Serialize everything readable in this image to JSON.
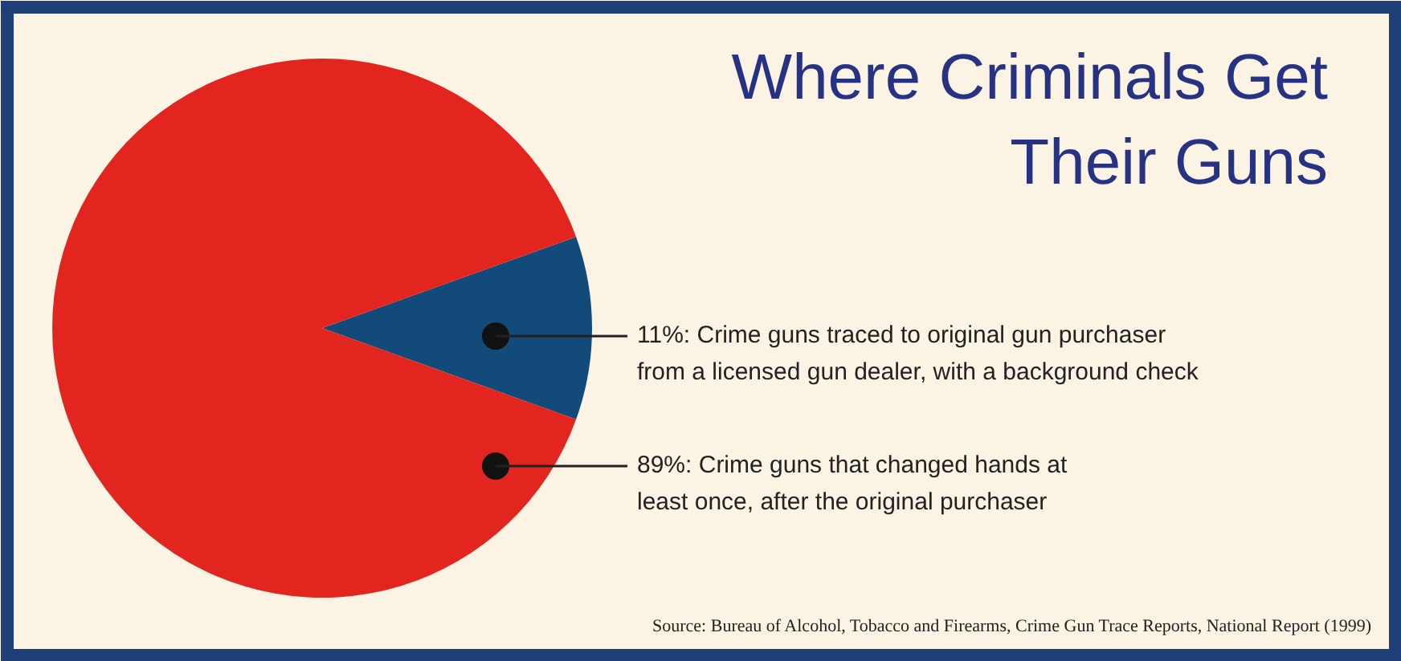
{
  "chart_data": {
    "type": "pie",
    "title": "Where Criminals Get\nTheir Guns",
    "categories": [
      "Crime guns traced to original gun purchaser\nfrom a licensed gun dealer, with a background check",
      "Crime guns that changed hands at\nleast once, after the original purchaser"
    ],
    "values": [
      11,
      89
    ],
    "value_labels": [
      "11%",
      "89%"
    ],
    "colors": [
      "#124a7a",
      "#e2261f"
    ],
    "annotations": [
      "Source: Bureau of Alcohol, Tobacco and Firearms, Crime Gun Trace Reports, National Report (1999)"
    ]
  }
}
